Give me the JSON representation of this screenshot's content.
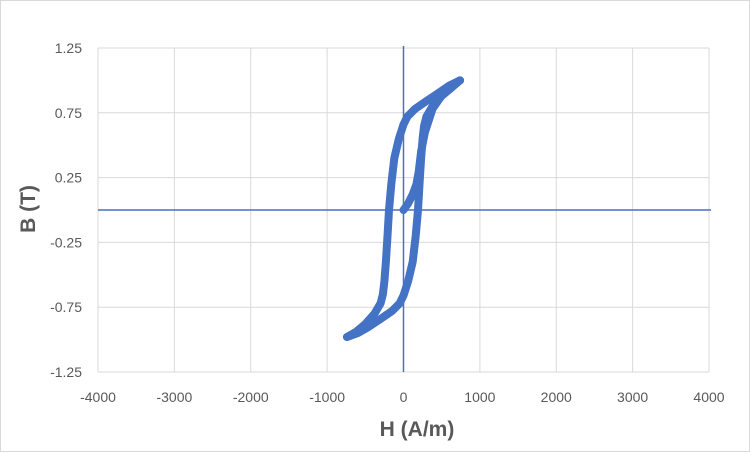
{
  "chart_data": {
    "type": "line",
    "title": "",
    "xlabel": "H (A/m)",
    "ylabel": "B (T)",
    "xlim": [
      -4000,
      4000
    ],
    "ylim": [
      -1.25,
      1.25
    ],
    "x_ticks": [
      -4000,
      -3000,
      -2000,
      -1000,
      0,
      1000,
      2000,
      3000,
      4000
    ],
    "y_ticks": [
      -1.25,
      -0.75,
      -0.25,
      0.25,
      0.75,
      1.25
    ],
    "x_tick_labels": [
      "-4000",
      "-3000",
      "-2000",
      "-1000",
      "0",
      "1000",
      "2000",
      "3000",
      "4000"
    ],
    "y_tick_labels": [
      "-1.25",
      "-0.75",
      "-0.25",
      "0.25",
      "0.75",
      "1.25"
    ],
    "grid": true,
    "legend": "none",
    "series_color": "#4472c4",
    "axis_line_color": "#4472c4",
    "grid_color": "#d9d9d9",
    "series": [
      {
        "x": [
          0,
          60,
          120,
          170,
          200,
          230,
          280,
          380,
          520,
          650,
          740
        ],
        "y": [
          0.0,
          0.05,
          0.12,
          0.2,
          0.3,
          0.45,
          0.6,
          0.78,
          0.9,
          0.97,
          1.0
        ]
      },
      {
        "x": [
          740,
          600,
          450,
          300,
          150,
          50,
          0,
          -60,
          -120,
          -160,
          -190,
          -210,
          -230,
          -250,
          -270,
          -300,
          -380,
          -500,
          -620,
          -740
        ],
        "y": [
          1.0,
          0.96,
          0.9,
          0.84,
          0.78,
          0.72,
          0.66,
          0.55,
          0.4,
          0.2,
          0.0,
          -0.2,
          -0.4,
          -0.55,
          -0.65,
          -0.72,
          -0.8,
          -0.88,
          -0.94,
          -0.98
        ]
      },
      {
        "x": [
          -740,
          -600,
          -450,
          -300,
          -150,
          -50,
          0,
          60,
          120,
          160,
          190,
          210,
          230,
          250,
          270,
          300,
          380,
          500,
          620,
          740
        ],
        "y": [
          -0.98,
          -0.95,
          -0.9,
          -0.84,
          -0.78,
          -0.72,
          -0.66,
          -0.55,
          -0.4,
          -0.2,
          0.0,
          0.2,
          0.4,
          0.55,
          0.65,
          0.72,
          0.8,
          0.88,
          0.94,
          1.0
        ]
      }
    ]
  }
}
